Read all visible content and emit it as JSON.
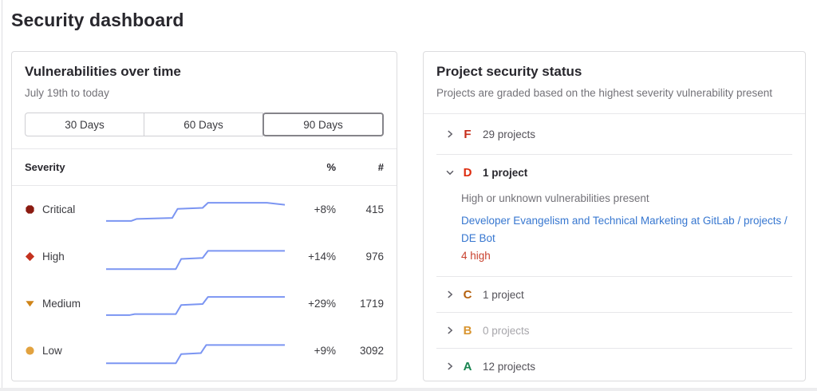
{
  "page": {
    "title": "Security dashboard"
  },
  "vulnerabilities_card": {
    "title": "Vulnerabilities over time",
    "subtitle": "July 19th to today",
    "range_buttons": [
      {
        "label": "30 Days",
        "selected": false
      },
      {
        "label": "60 Days",
        "selected": false
      },
      {
        "label": "90 Days",
        "selected": true
      }
    ],
    "table_headers": {
      "severity": "Severity",
      "percent": "%",
      "count": "#"
    },
    "rows": [
      {
        "label": "Critical",
        "icon": "critical-severity-icon",
        "icon_color": "#8b1a10",
        "percent_change": "+8%",
        "count": "415"
      },
      {
        "label": "High",
        "icon": "high-severity-icon",
        "icon_color": "#c4321f",
        "percent_change": "+14%",
        "count": "976"
      },
      {
        "label": "Medium",
        "icon": "medium-severity-icon",
        "icon_color": "#cf8418",
        "percent_change": "+29%",
        "count": "1719"
      },
      {
        "label": "Low",
        "icon": "low-severity-icon",
        "icon_color": "#e2a23f",
        "percent_change": "+9%",
        "count": "3092"
      }
    ]
  },
  "chart_data": {
    "type": "line",
    "title": "Vulnerabilities over time",
    "subtitle": "July 19th to today",
    "x_axis": "time, July 19th to today (90 day range selected)",
    "grid": false,
    "legend_position": "none",
    "line_color": "#7b95f2",
    "y_note": "sparkline points as [x_percent, relative_value 0-30], y up; step-shaped cumulative vulnerability counts",
    "series": [
      {
        "name": "Critical",
        "percent_change": "+8%",
        "current_count": 415,
        "points": [
          [
            0,
            4
          ],
          [
            14,
            4
          ],
          [
            17,
            6
          ],
          [
            37,
            7
          ],
          [
            40,
            16
          ],
          [
            54,
            17
          ],
          [
            57,
            22
          ],
          [
            90,
            22
          ],
          [
            100,
            20
          ]
        ]
      },
      {
        "name": "High",
        "percent_change": "+14%",
        "current_count": 976,
        "points": [
          [
            0,
            3
          ],
          [
            39,
            3
          ],
          [
            42,
            13
          ],
          [
            54,
            14
          ],
          [
            57,
            21
          ],
          [
            100,
            21
          ]
        ]
      },
      {
        "name": "Medium",
        "percent_change": "+29%",
        "current_count": 1719,
        "points": [
          [
            0,
            4
          ],
          [
            13,
            4
          ],
          [
            16,
            5
          ],
          [
            39,
            5
          ],
          [
            42,
            14
          ],
          [
            54,
            15
          ],
          [
            57,
            22
          ],
          [
            100,
            22
          ]
        ]
      },
      {
        "name": "Low",
        "percent_change": "+9%",
        "current_count": 3092,
        "points": [
          [
            0,
            3
          ],
          [
            39,
            3
          ],
          [
            42,
            12
          ],
          [
            53,
            13
          ],
          [
            56,
            21
          ],
          [
            100,
            21
          ]
        ]
      }
    ]
  },
  "project_status_card": {
    "title": "Project security status",
    "subtitle": "Projects are graded based on the highest severity vulnerability present",
    "grades": [
      {
        "letter": "F",
        "color": "#c62d19",
        "count_label": "29 projects"
      },
      {
        "letter": "D",
        "color": "#dd2b0e",
        "count_label": "1 project",
        "description": "High or unknown vulnerabilities present",
        "project_link": "Developer Evangelism and Technical Marketing at GitLab / projects / DE Bot",
        "vulnerability_summary": "4 high"
      },
      {
        "letter": "C",
        "color": "#b5610e",
        "count_label": "1 project"
      },
      {
        "letter": "B",
        "color": "#d99530",
        "count_label": "0 projects"
      },
      {
        "letter": "A",
        "color": "#188450",
        "count_label": "12 projects"
      }
    ]
  }
}
